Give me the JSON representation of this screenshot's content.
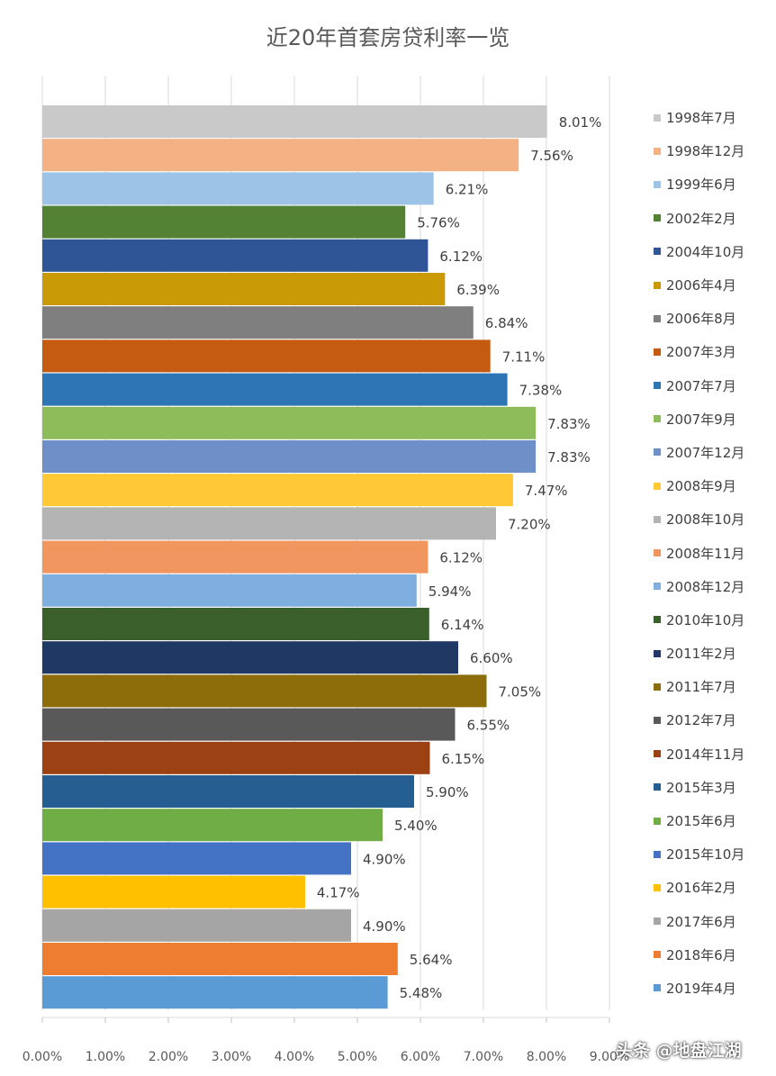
{
  "chart_data": {
    "type": "bar",
    "orientation": "horizontal",
    "title": "近20年首套房贷利率一览",
    "xlim": [
      0,
      9
    ],
    "grid": true,
    "legend_position": "right",
    "x_tick_labels": [
      "0.00%",
      "1.00%",
      "2.00%",
      "3.00%",
      "4.00%",
      "5.00%",
      "6.00%",
      "7.00%",
      "8.00%",
      "9.00%"
    ],
    "series": [
      {
        "name": "1998年7月",
        "value": 8.01,
        "label": "8.01%",
        "color": "#c9c9c9"
      },
      {
        "name": "1998年12月",
        "value": 7.56,
        "label": "7.56%",
        "color": "#f4b183"
      },
      {
        "name": "1999年6月",
        "value": 6.21,
        "label": "6.21%",
        "color": "#9dc3e6"
      },
      {
        "name": "2002年2月",
        "value": 5.76,
        "label": "5.76%",
        "color": "#548235"
      },
      {
        "name": "2004年10月",
        "value": 6.12,
        "label": "6.12%",
        "color": "#2f5597"
      },
      {
        "name": "2006年4月",
        "value": 6.39,
        "label": "6.39%",
        "color": "#c99a06"
      },
      {
        "name": "2006年8月",
        "value": 6.84,
        "label": "6.84%",
        "color": "#7f7f7f"
      },
      {
        "name": "2007年3月",
        "value": 7.11,
        "label": "7.11%",
        "color": "#c55a11"
      },
      {
        "name": "2007年7月",
        "value": 7.38,
        "label": "7.38%",
        "color": "#2e75b6"
      },
      {
        "name": "2007年9月",
        "value": 7.83,
        "label": "7.83%",
        "color": "#8fbc5a"
      },
      {
        "name": "2007年12月",
        "value": 7.83,
        "label": "7.83%",
        "color": "#6f8fc9"
      },
      {
        "name": "2008年9月",
        "value": 7.47,
        "label": "7.47%",
        "color": "#ffc936"
      },
      {
        "name": "2008年10月",
        "value": 7.2,
        "label": "7.20%",
        "color": "#b4b4b4"
      },
      {
        "name": "2008年11月",
        "value": 6.12,
        "label": "6.12%",
        "color": "#f0965e"
      },
      {
        "name": "2008年12月",
        "value": 5.94,
        "label": "5.94%",
        "color": "#7eafdf"
      },
      {
        "name": "2010年10月",
        "value": 6.14,
        "label": "6.14%",
        "color": "#3a5f2a"
      },
      {
        "name": "2011年2月",
        "value": 6.6,
        "label": "6.60%",
        "color": "#203864"
      },
      {
        "name": "2011年7月",
        "value": 7.05,
        "label": "7.05%",
        "color": "#8c6d0a"
      },
      {
        "name": "2012年7月",
        "value": 6.55,
        "label": "6.55%",
        "color": "#595959"
      },
      {
        "name": "2014年11月",
        "value": 6.15,
        "label": "6.15%",
        "color": "#9c4113"
      },
      {
        "name": "2015年3月",
        "value": 5.9,
        "label": "5.90%",
        "color": "#255e91"
      },
      {
        "name": "2015年6月",
        "value": 5.4,
        "label": "5.40%",
        "color": "#70ad47"
      },
      {
        "name": "2015年10月",
        "value": 4.9,
        "label": "4.90%",
        "color": "#4472c4"
      },
      {
        "name": "2016年2月",
        "value": 4.17,
        "label": "4.17%",
        "color": "#ffc000"
      },
      {
        "name": "2017年6月",
        "value": 4.9,
        "label": "4.90%",
        "color": "#a5a5a5"
      },
      {
        "name": "2018年6月",
        "value": 5.64,
        "label": "5.64%",
        "color": "#ed7d31"
      },
      {
        "name": "2019年4月",
        "value": 5.48,
        "label": "5.48%",
        "color": "#5b9bd5"
      }
    ]
  },
  "watermark": "头条 @地盘江湖"
}
